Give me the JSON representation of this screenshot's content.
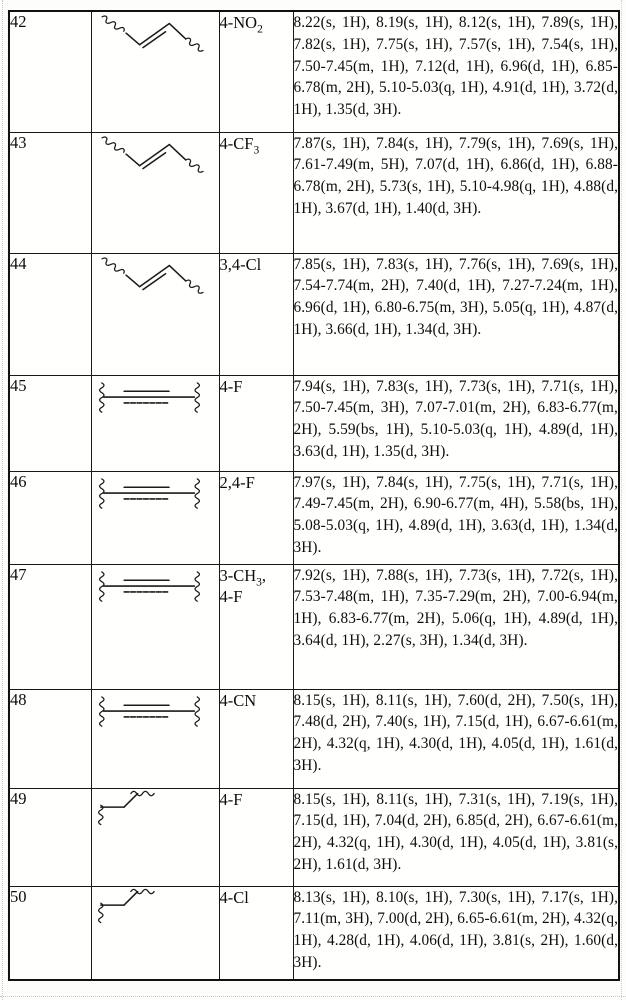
{
  "document": {
    "kind_label": "compound NMR characterization table",
    "text_color": "#0d0d0d",
    "border_color": "#181818",
    "background_color": "#fdfdfb"
  },
  "compound_table": {
    "columns": [
      "compound-number",
      "linker-structure",
      "substituent",
      "nmr-shifts"
    ],
    "rows": [
      {
        "id": "42",
        "structure": "trans-alkene",
        "substituent_lines": [
          "4-NO~2~"
        ],
        "nmr": "8.22(s, 1H), 8.19(s, 1H), 8.12(s, 1H), 7.89(s, 1H), 7.82(s, 1H), 7.75(s, 1H), 7.57(s, 1H), 7.54(s, 1H), 7.50-7.45(m, 1H), 7.12(d, 1H), 6.96(d, 1H), 6.85-6.78(m, 2H), 5.10-5.03(q, 1H), 4.91(d, 1H), 3.72(d, 1H), 1.35(d, 3H)."
      },
      {
        "id": "43",
        "structure": "trans-alkene",
        "substituent_lines": [
          "4-CF~3~"
        ],
        "nmr": "7.87(s, 1H), 7.84(s, 1H), 7.79(s, 1H), 7.69(s, 1H), 7.61-7.49(m, 5H), 7.07(d, 1H), 6.86(d, 1H), 6.88-6.78(m, 2H), 5.73(s, 1H), 5.10-4.98(q, 1H), 4.88(d, 1H), 3.67(d, 1H), 1.40(d, 3H)."
      },
      {
        "id": "44",
        "structure": "trans-alkene",
        "substituent_lines": [
          "3,4-Cl"
        ],
        "nmr": "7.85(s, 1H), 7.83(s, 1H), 7.76(s, 1H), 7.69(s, 1H), 7.54-7.74(m, 2H), 7.40(d, 1H), 7.27-7.24(m, 1H), 6.96(d, 1H), 6.80-6.75(m, 3H), 5.05(q, 1H), 4.87(d, 1H), 3.66(d, 1H), 1.34(d, 3H)."
      },
      {
        "id": "45",
        "structure": "alkyne",
        "substituent_lines": [
          "4-F"
        ],
        "nmr": "7.94(s, 1H), 7.83(s, 1H), 7.73(s, 1H), 7.71(s, 1H), 7.50-7.45(m, 3H), 7.07-7.01(m, 2H), 6.83-6.77(m, 2H), 5.59(bs, 1H), 5.10-5.03(q, 1H), 4.89(d, 1H), 3.63(d, 1H), 1.35(d, 3H)."
      },
      {
        "id": "46",
        "structure": "alkyne",
        "substituent_lines": [
          "2,4-F"
        ],
        "nmr": "7.97(s, 1H), 7.84(s, 1H), 7.75(s, 1H), 7.71(s, 1H), 7.49-7.45(m, 2H), 6.90-6.77(m, 4H), 5.58(bs, 1H), 5.08-5.03(q, 1H), 4.89(d, 1H), 3.63(d, 1H), 1.34(d, 3H)."
      },
      {
        "id": "47",
        "structure": "alkyne",
        "substituent_lines": [
          "3-CH~3~,",
          "4-F"
        ],
        "nmr": "7.92(s, 1H), 7.88(s, 1H), 7.73(s, 1H), 7.72(s, 1H), 7.53-7.48(m, 1H), 7.35-7.29(m, 2H), 7.00-6.94(m, 1H), 6.83-6.77(m, 2H), 5.06(q, 1H), 4.89(d, 1H), 3.64(d, 1H), 2.27(s, 3H), 1.34(d, 3H)."
      },
      {
        "id": "48",
        "structure": "alkyne",
        "substituent_lines": [
          "4-CN"
        ],
        "nmr": "8.15(s, 1H), 8.11(s, 1H), 7.60(d, 2H), 7.50(s, 1H), 7.48(d, 2H), 7.40(s, 1H), 7.15(d, 1H), 6.67-6.61(m, 2H), 4.32(q, 1H), 4.30(d, 1H), 4.05(d, 1H), 1.61(d, 3H)."
      },
      {
        "id": "49",
        "structure": "methylene",
        "substituent_lines": [
          "4-F"
        ],
        "nmr": "8.15(s, 1H), 8.11(s, 1H), 7.31(s, 1H), 7.19(s, 1H), 7.15(d, 1H), 7.04(d, 2H), 6.85(d, 2H), 6.67-6.61(m, 2H), 4.32(q, 1H), 4.30(d, 1H), 4.05(d, 1H), 3.81(s, 2H), 1.61(d, 3H)."
      },
      {
        "id": "50",
        "structure": "methylene",
        "substituent_lines": [
          "4-Cl"
        ],
        "nmr": "8.13(s, 1H), 8.10(s, 1H), 7.30(s, 1H), 7.17(s, 1H), 7.11(m, 3H), 7.00(d, 2H), 6.65-6.61(m, 2H), 4.32(q, 1H), 4.28(d, 1H), 4.06(d, 1H), 3.81(s, 2H), 1.60(d, 3H)."
      }
    ]
  }
}
